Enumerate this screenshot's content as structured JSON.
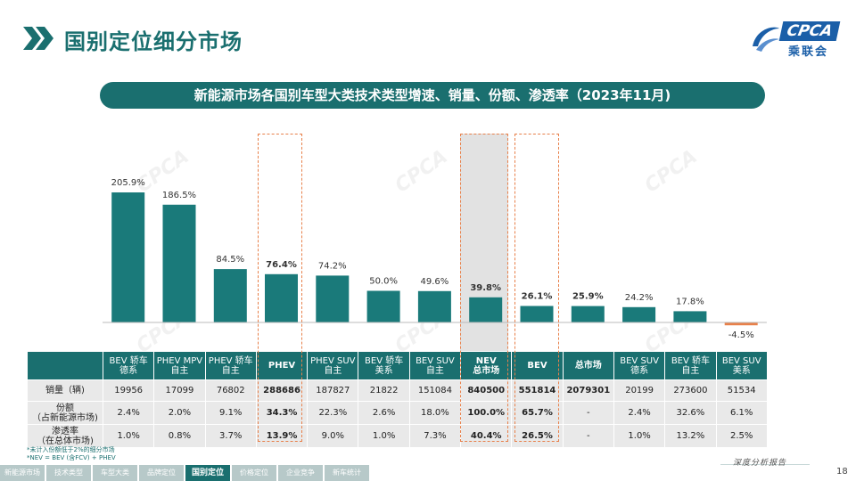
{
  "header": {
    "title": "国别定位细分市场",
    "logo_text": "CPCA",
    "logo_sub": "乘联会"
  },
  "chart_title": "新能源市场各国别车型大类技术类型增速、销量、份额、渗透率（2023年11月)",
  "chart_data": {
    "type": "bar",
    "title": "新能源市场各国别车型大类技术类型增速、销量、份额、渗透率（2023年11月)",
    "categories": [
      "BEV 轿车 德系",
      "PHEV MPV 自主",
      "PHEV 轿车 自主",
      "PHEV",
      "PHEV SUV 自主",
      "BEV 轿车 美系",
      "BEV SUV 自主",
      "NEV 总市场",
      "BEV",
      "总市场",
      "BEV SUV 德系",
      "BEV 轿车 自主",
      "BEV SUV 美系"
    ],
    "series": [
      {
        "values": [
          205.9,
          186.5,
          84.5,
          76.4,
          74.2,
          50.0,
          49.6,
          39.8,
          26.1,
          25.9,
          24.2,
          17.8,
          -4.5
        ],
        "labels": [
          "205.9%",
          "186.5%",
          "84.5%",
          "76.4%",
          "74.2%",
          "50.0%",
          "49.6%",
          "39.8%",
          "26.1%",
          "25.9%",
          "24.2%",
          "17.8%",
          "-4.5%"
        ]
      }
    ],
    "ylim": [
      -10,
      220
    ],
    "grid": false,
    "legend": "none",
    "bar_color": "#1a7a7a",
    "negative_color": "#e8804a"
  },
  "table": {
    "columns": [
      {
        "l1": "BEV 轿车",
        "l2": "德系"
      },
      {
        "l1": "PHEV MPV",
        "l2": "自主"
      },
      {
        "l1": "PHEV 轿车",
        "l2": "自主"
      },
      {
        "l1": "PHEV",
        "l2": ""
      },
      {
        "l1": "PHEV SUV",
        "l2": "自主"
      },
      {
        "l1": "BEV 轿车",
        "l2": "美系"
      },
      {
        "l1": "BEV SUV",
        "l2": "自主"
      },
      {
        "l1": "NEV",
        "l2": "总市场"
      },
      {
        "l1": "BEV",
        "l2": ""
      },
      {
        "l1": "总市场",
        "l2": ""
      },
      {
        "l1": "BEV SUV",
        "l2": "德系"
      },
      {
        "l1": "BEV 轿车",
        "l2": "自主"
      },
      {
        "l1": "BEV SUV",
        "l2": "美系"
      }
    ],
    "rows": [
      {
        "h1": "销量（辆)",
        "h2": "",
        "cells": [
          "19956",
          "17099",
          "76802",
          "288686",
          "187827",
          "21822",
          "151084",
          "840500",
          "551814",
          "2079301",
          "20199",
          "273600",
          "51534"
        ]
      },
      {
        "h1": "份额",
        "h2": "（占新能源市场)",
        "cells": [
          "2.4%",
          "2.0%",
          "9.1%",
          "34.3%",
          "22.3%",
          "2.6%",
          "18.0%",
          "100.0%",
          "65.7%",
          "-",
          "2.4%",
          "32.6%",
          "6.1%"
        ]
      },
      {
        "h1": "渗透率",
        "h2": "（在总体市场)",
        "cells": [
          "1.0%",
          "0.8%",
          "3.7%",
          "13.9%",
          "9.0%",
          "1.0%",
          "7.3%",
          "40.4%",
          "26.5%",
          "-",
          "1.0%",
          "13.2%",
          "2.5%"
        ]
      }
    ]
  },
  "footnotes": [
    "*未计入份额低于2%的细分市场",
    "*NEV = BEV (含FCV) + PHEV"
  ],
  "bottom_nav": [
    "新能源市场",
    "技术类型",
    "车型大类",
    "品牌定位",
    "国别定位",
    "价格定位",
    "企业竞争",
    "新车统计"
  ],
  "bottom_nav_active": 4,
  "tagline": "深度分析报告",
  "page_number": "18",
  "colors": {
    "accent": "#1a6f6f",
    "highlight_dash": "#e8804a"
  }
}
